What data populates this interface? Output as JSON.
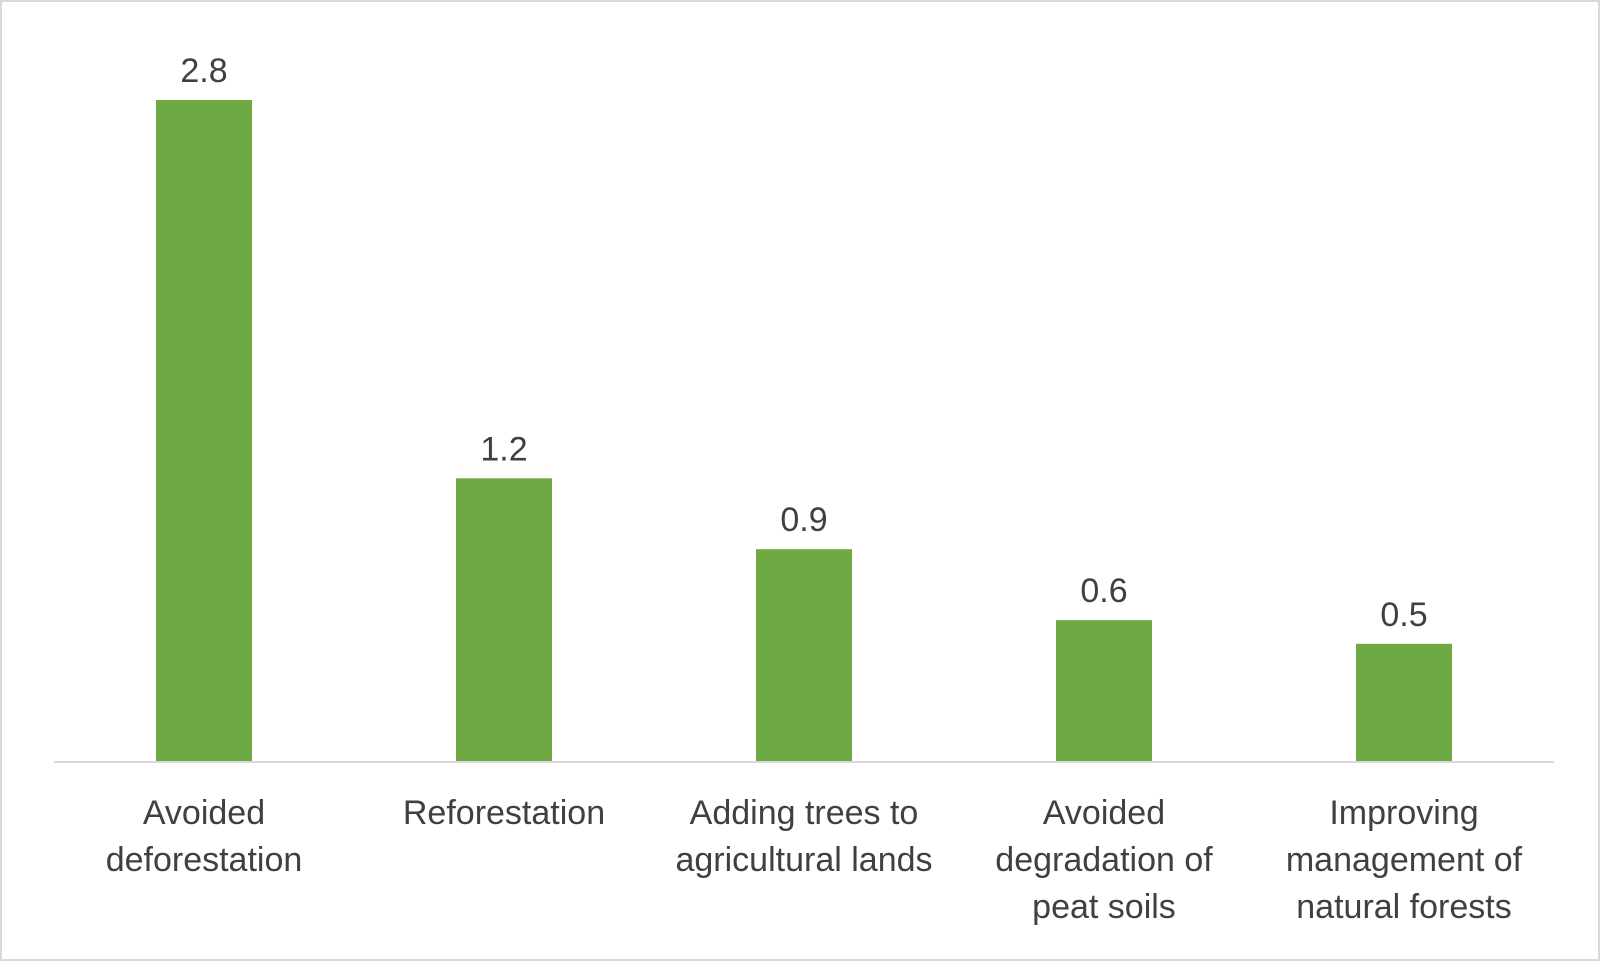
{
  "chart_data": {
    "type": "bar",
    "title": "",
    "xlabel": "",
    "ylabel": "",
    "categories": [
      [
        "Avoided",
        "deforestation"
      ],
      [
        "Reforestation"
      ],
      [
        "Adding trees to",
        "agricultural lands"
      ],
      [
        "Avoided",
        "degradation of",
        "peat soils"
      ],
      [
        "Improving",
        "management of",
        "natural forests"
      ]
    ],
    "values": [
      2.8,
      1.2,
      0.9,
      0.6,
      0.5
    ],
    "value_labels": [
      "2.8",
      "1.2",
      "0.9",
      "0.6",
      "0.5"
    ],
    "ylim": [
      0,
      2.8
    ],
    "grid": false,
    "legend": "none",
    "colors": {
      "bar": "#6ea944",
      "axis": "#d9d9d9",
      "text": "#404040",
      "border": "#d9d9d9"
    }
  }
}
